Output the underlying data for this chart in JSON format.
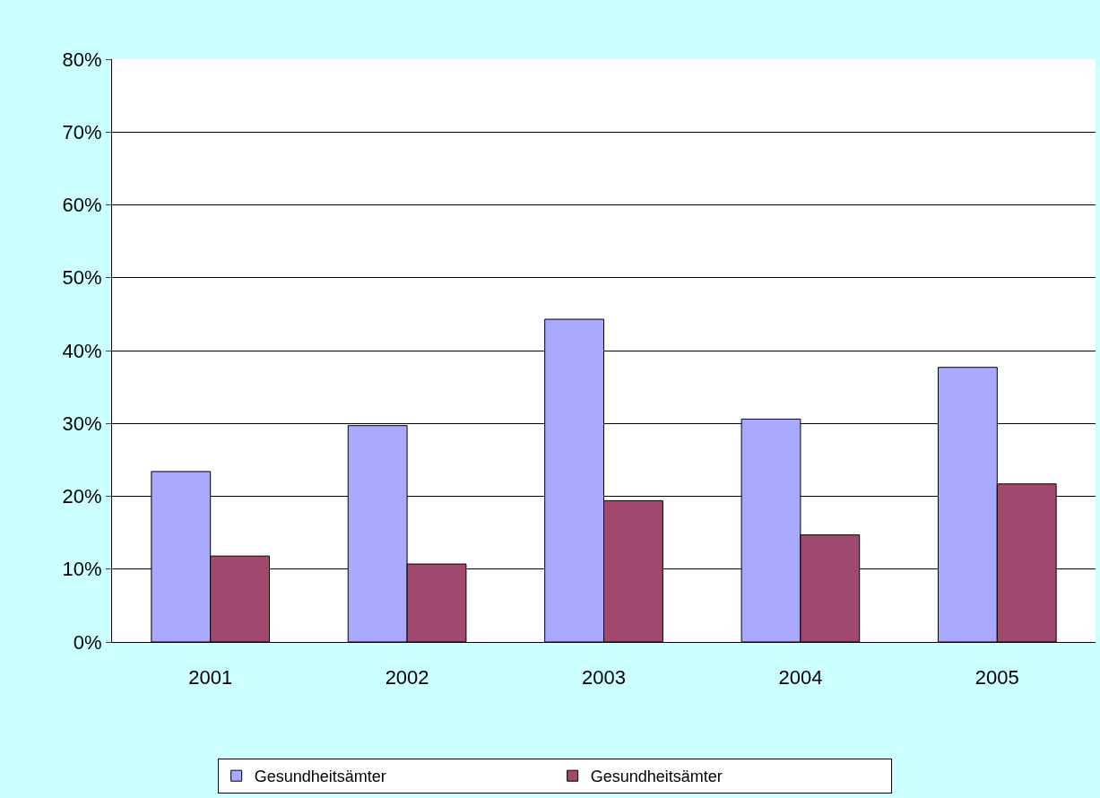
{
  "chart_data": {
    "type": "bar",
    "categories": [
      "2001",
      "2002",
      "2003",
      "2004",
      "2005"
    ],
    "series": [
      {
        "name": "Gesundheitsämter",
        "color": "#a9a9ff",
        "values": [
          23.4,
          29.7,
          44.3,
          30.6,
          37.7
        ]
      },
      {
        "name": "Gesundheitsämter",
        "color": "#a0486e",
        "values": [
          11.8,
          10.7,
          19.4,
          14.7,
          21.7
        ]
      }
    ],
    "ylim": [
      0,
      80
    ],
    "yticks": [
      {
        "value": 0,
        "label": "0%"
      },
      {
        "value": 10,
        "label": "10%"
      },
      {
        "value": 20,
        "label": "20%"
      },
      {
        "value": 30,
        "label": "30%"
      },
      {
        "value": 40,
        "label": "40%"
      },
      {
        "value": 50,
        "label": "50%"
      },
      {
        "value": 60,
        "label": "60%"
      },
      {
        "value": 70,
        "label": "70%"
      },
      {
        "value": 80,
        "label": "80%"
      }
    ],
    "grid": "y",
    "legend": "bottom"
  }
}
